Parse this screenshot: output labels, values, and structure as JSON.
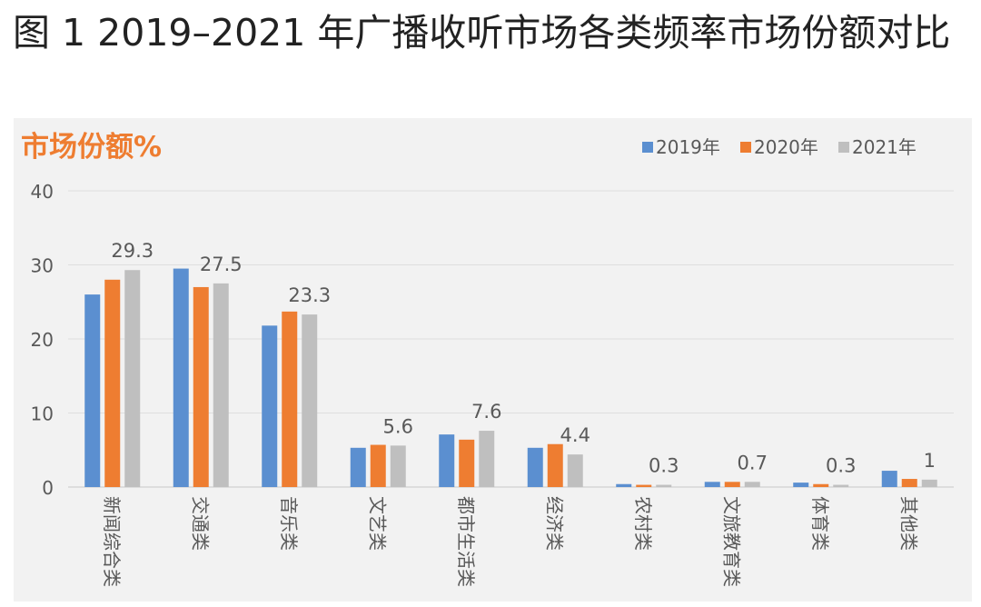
{
  "figure_title": "图 1 2019–2021 年广播收听市场各类频率市场份额对比",
  "chart_data": {
    "type": "bar",
    "title": "市场份额%",
    "xlabel": "",
    "ylabel": "市场份额%",
    "ylim": [
      0,
      40
    ],
    "yticks": [
      0,
      10,
      20,
      30,
      40
    ],
    "grid": true,
    "legend_position": "top-right",
    "categories": [
      "新闻综合类",
      "交通类",
      "音乐类",
      "文艺类",
      "都市生活类",
      "经济类",
      "农村类",
      "文旅教育类",
      "体育类",
      "其他类"
    ],
    "series": [
      {
        "name": "2019年",
        "color": "#5b8fd0",
        "values": [
          26.0,
          29.5,
          21.8,
          5.3,
          7.1,
          5.3,
          0.4,
          0.7,
          0.6,
          2.2
        ]
      },
      {
        "name": "2020年",
        "color": "#ee7d31",
        "values": [
          28.0,
          27.0,
          23.7,
          5.7,
          6.4,
          5.8,
          0.3,
          0.7,
          0.4,
          1.1
        ]
      },
      {
        "name": "2021年",
        "color": "#bfbfbf",
        "values": [
          29.3,
          27.5,
          23.3,
          5.6,
          7.6,
          4.4,
          0.3,
          0.7,
          0.3,
          1.0
        ]
      }
    ],
    "labeled_series_index": 2,
    "data_labels": [
      "29.3",
      "27.5",
      "23.3",
      "5.6",
      "7.6",
      "4.4",
      "0.3",
      "0.7",
      "0.3",
      "1"
    ]
  }
}
